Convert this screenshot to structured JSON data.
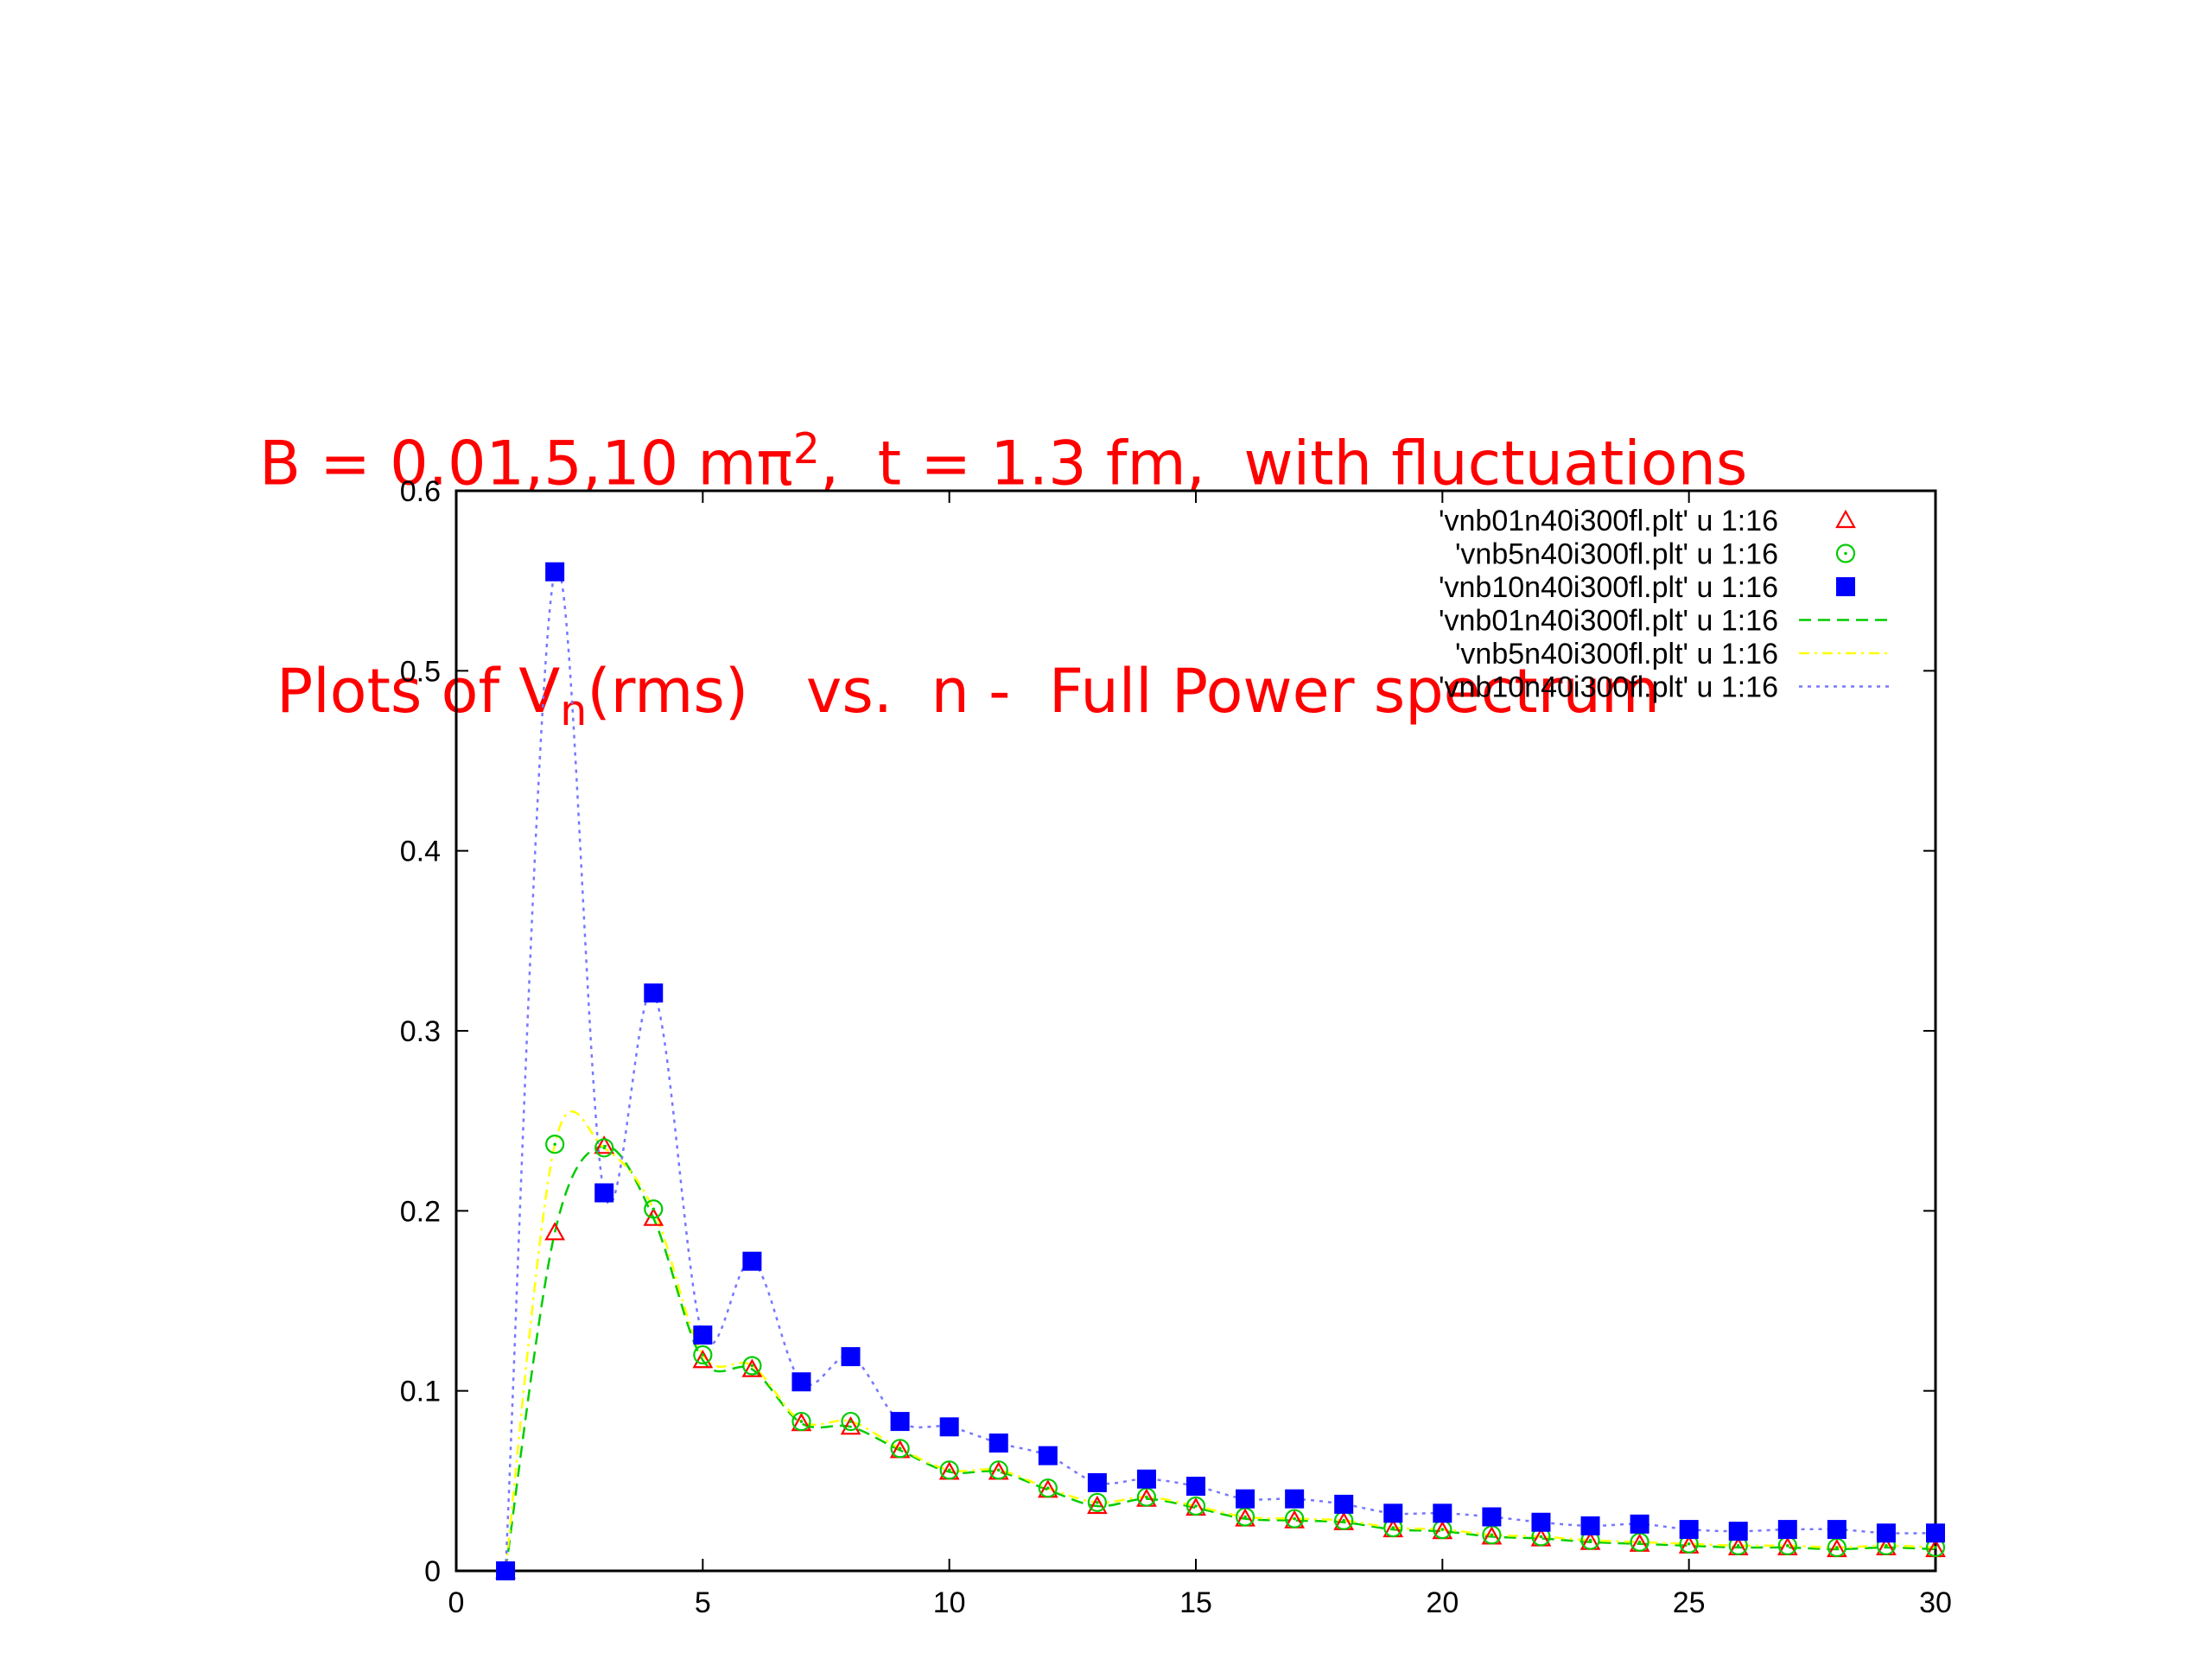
{
  "slide": {
    "title_line1": {
      "prefix": "B = 0.01,5,10 mπ",
      "sup": "2",
      "suffix": ",  t = 1.3 fm,  with fluctuations"
    },
    "title_line2": {
      "prefix": "Plots of V",
      "sub": "n",
      "suffix": "(rms)   vs.  n -  Full Power spectrum"
    }
  },
  "colors": {
    "title": "#ff0000",
    "red": "#ff0000",
    "green": "#00cc00",
    "blue": "#0000ff",
    "line_green": "#00cc00",
    "line_yellow": "#ffff00",
    "line_blue": "#7777ff"
  },
  "chart_data": {
    "type": "scatter",
    "xlim": [
      0,
      30
    ],
    "ylim": [
      0,
      0.6
    ],
    "xticks": [
      0,
      5,
      10,
      15,
      20,
      25,
      30
    ],
    "yticks": [
      0,
      0.1,
      0.2,
      0.3,
      0.4,
      0.5,
      0.6
    ],
    "xtick_labels": [
      "0",
      "5",
      "10",
      "15",
      "20",
      "25",
      "30"
    ],
    "ytick_labels": [
      "0",
      "0.1",
      "0.2",
      "0.3",
      "0.4",
      "0.5",
      "0.6"
    ],
    "grid": false,
    "legend_position": "top-right",
    "x": [
      1,
      2,
      3,
      4,
      5,
      6,
      7,
      8,
      9,
      10,
      11,
      12,
      13,
      14,
      15,
      16,
      17,
      18,
      19,
      20,
      21,
      22,
      23,
      24,
      25,
      26,
      27,
      28,
      29,
      30
    ],
    "series": [
      {
        "name": "'vnb01n40i300fl.plt' u 1:16",
        "style": "points",
        "marker": "triangle-open",
        "color": "red",
        "values": [
          0,
          0.188,
          0.236,
          0.196,
          0.117,
          0.112,
          0.082,
          0.08,
          0.067,
          0.055,
          0.055,
          0.045,
          0.036,
          0.04,
          0.035,
          0.029,
          0.028,
          0.027,
          0.023,
          0.022,
          0.019,
          0.018,
          0.016,
          0.015,
          0.014,
          0.013,
          0.013,
          0.012,
          0.013,
          0.012
        ]
      },
      {
        "name": "'vnb5n40i300fl.plt' u 1:16",
        "style": "points",
        "marker": "circle-open",
        "color": "green",
        "values": [
          0,
          0.237,
          0.235,
          0.201,
          0.12,
          0.114,
          0.083,
          0.083,
          0.068,
          0.056,
          0.056,
          0.046,
          0.038,
          0.041,
          0.036,
          0.03,
          0.029,
          0.028,
          0.024,
          0.023,
          0.02,
          0.019,
          0.017,
          0.016,
          0.015,
          0.014,
          0.014,
          0.013,
          0.014,
          0.013
        ]
      },
      {
        "name": "'vnb10n40i300fl.plt' u 1:16",
        "style": "points",
        "marker": "square-filled",
        "color": "blue",
        "values": [
          0,
          0.555,
          0.21,
          0.321,
          0.131,
          0.172,
          0.105,
          0.119,
          0.083,
          0.08,
          0.071,
          0.064,
          0.049,
          0.051,
          0.047,
          0.04,
          0.04,
          0.037,
          0.032,
          0.032,
          0.03,
          0.027,
          0.025,
          0.026,
          0.023,
          0.022,
          0.023,
          0.023,
          0.021,
          0.021
        ]
      },
      {
        "name": "'vnb01n40i300fl.plt' u 1:16",
        "style": "line",
        "dash": "dashed",
        "color": "line_green",
        "smooth": true,
        "values": [
          0,
          0.188,
          0.236,
          0.196,
          0.117,
          0.112,
          0.082,
          0.08,
          0.067,
          0.055,
          0.055,
          0.045,
          0.036,
          0.04,
          0.035,
          0.029,
          0.028,
          0.027,
          0.023,
          0.022,
          0.019,
          0.018,
          0.016,
          0.015,
          0.014,
          0.013,
          0.013,
          0.012,
          0.013,
          0.012
        ]
      },
      {
        "name": "'vnb5n40i300fl.plt' u 1:16",
        "style": "line",
        "dash": "dash-dot",
        "color": "line_yellow",
        "smooth": true,
        "values": [
          0,
          0.237,
          0.235,
          0.201,
          0.12,
          0.114,
          0.083,
          0.083,
          0.068,
          0.056,
          0.056,
          0.046,
          0.038,
          0.041,
          0.036,
          0.03,
          0.029,
          0.028,
          0.024,
          0.023,
          0.02,
          0.019,
          0.017,
          0.016,
          0.015,
          0.014,
          0.014,
          0.013,
          0.014,
          0.013
        ]
      },
      {
        "name": "'vnb10n40i300fl.plt' u 1:16",
        "style": "line",
        "dash": "dotted",
        "color": "line_blue",
        "smooth": true,
        "values": [
          0,
          0.555,
          0.21,
          0.321,
          0.131,
          0.172,
          0.105,
          0.119,
          0.083,
          0.08,
          0.071,
          0.064,
          0.049,
          0.051,
          0.047,
          0.04,
          0.04,
          0.037,
          0.032,
          0.032,
          0.03,
          0.027,
          0.025,
          0.026,
          0.023,
          0.022,
          0.023,
          0.023,
          0.021,
          0.021
        ]
      }
    ]
  }
}
